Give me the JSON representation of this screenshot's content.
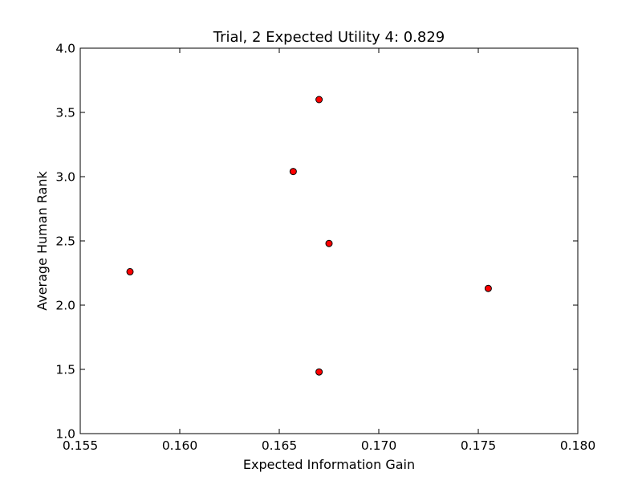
{
  "chart_data": {
    "type": "scatter",
    "title": "Trial, 2 Expected Utility 4: 0.829",
    "xlabel": "Expected Information Gain",
    "ylabel": "Average Human Rank",
    "xlim": [
      0.155,
      0.18
    ],
    "ylim": [
      1.0,
      4.0
    ],
    "x_ticks": [
      0.155,
      0.16,
      0.165,
      0.17,
      0.175,
      0.18
    ],
    "x_tick_labels": [
      "0.155",
      "0.160",
      "0.165",
      "0.170",
      "0.175",
      "0.180"
    ],
    "y_ticks": [
      1.0,
      1.5,
      2.0,
      2.5,
      3.0,
      3.5,
      4.0
    ],
    "y_tick_labels": [
      "1.0",
      "1.5",
      "2.0",
      "2.5",
      "3.0",
      "3.5",
      "4.0"
    ],
    "grid": false,
    "legend": "none",
    "marker_color": "#ff0000",
    "marker_edge_color": "#000000",
    "points": [
      {
        "x": 0.1575,
        "y": 2.26
      },
      {
        "x": 0.1657,
        "y": 3.04
      },
      {
        "x": 0.167,
        "y": 3.6
      },
      {
        "x": 0.1675,
        "y": 2.48
      },
      {
        "x": 0.167,
        "y": 1.48
      },
      {
        "x": 0.1755,
        "y": 2.13
      }
    ]
  }
}
